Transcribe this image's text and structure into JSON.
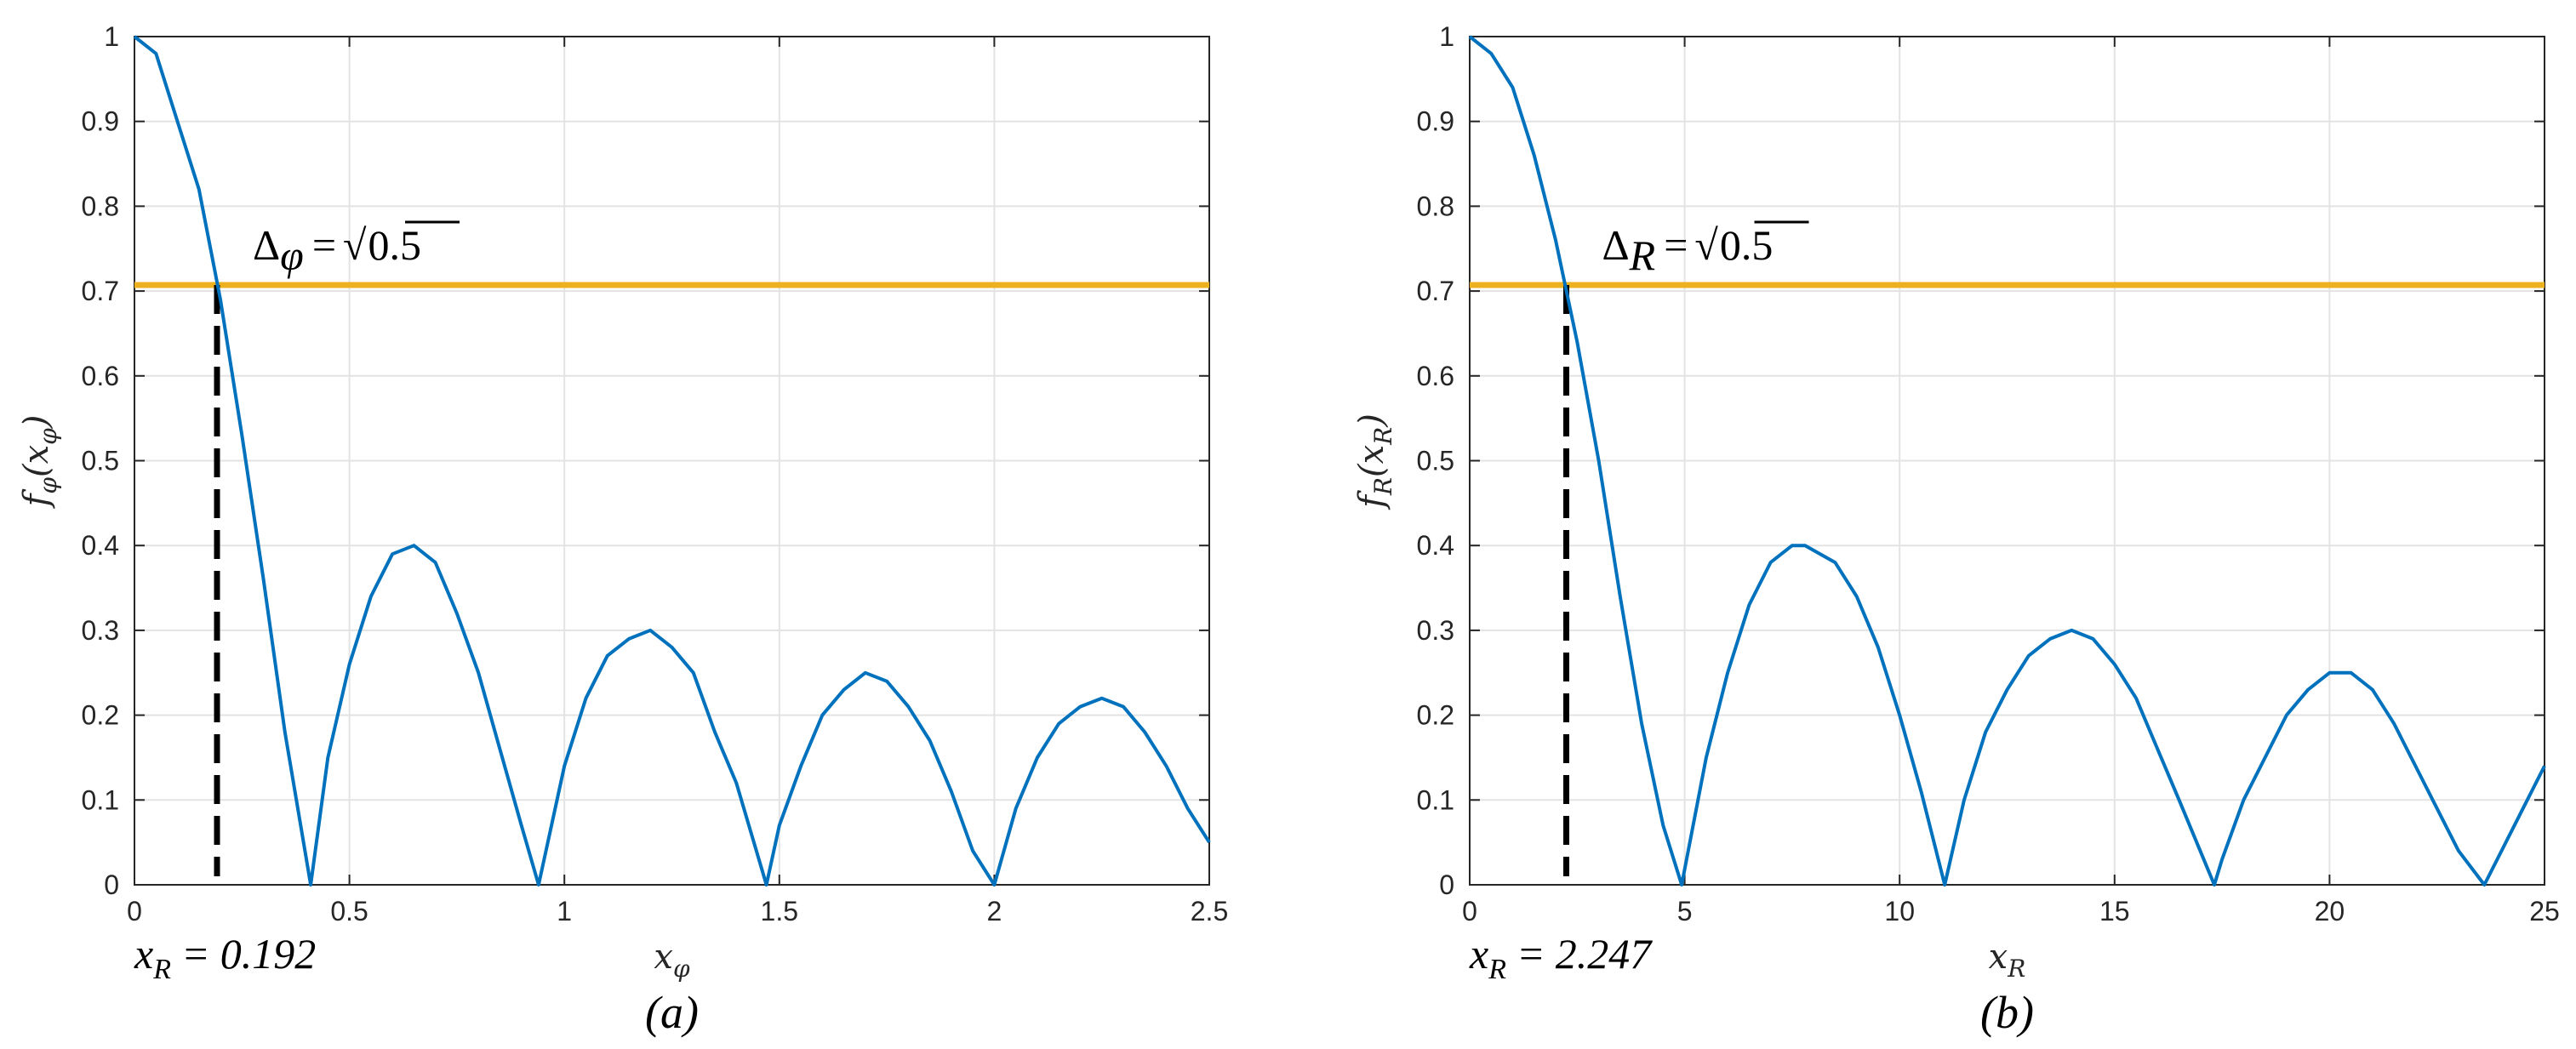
{
  "chart_data": [
    {
      "type": "line",
      "function": "phi",
      "xlim": [
        0,
        2.5
      ],
      "ylim": [
        0,
        1
      ],
      "x_ticks": [
        "0",
        "0.5",
        "1",
        "1.5",
        "2",
        "2.5"
      ],
      "y_ticks": [
        "0",
        "0.1",
        "0.2",
        "0.3",
        "0.4",
        "0.5",
        "0.6",
        "0.7",
        "0.8",
        "0.9",
        "1"
      ],
      "xlabel": {
        "base": "x",
        "sub": "φ"
      },
      "ylabel": {
        "f": "f",
        "fsub": "φ",
        "arg": "x",
        "argsub": "φ"
      },
      "grid": true,
      "curve": {
        "x": [
          0,
          0.05,
          0.1,
          0.15,
          0.2,
          0.25,
          0.3,
          0.35,
          0.41,
          0.45,
          0.5,
          0.55,
          0.6,
          0.65,
          0.7,
          0.75,
          0.8,
          0.85,
          0.9,
          0.94,
          1.0,
          1.05,
          1.1,
          1.15,
          1.2,
          1.25,
          1.3,
          1.35,
          1.4,
          1.47,
          1.5,
          1.55,
          1.6,
          1.65,
          1.7,
          1.75,
          1.8,
          1.85,
          1.9,
          1.95,
          2.0,
          2.05,
          2.1,
          2.15,
          2.2,
          2.25,
          2.3,
          2.35,
          2.4,
          2.45,
          2.5
        ],
        "y": [
          1.0,
          0.98,
          0.9,
          0.82,
          0.69,
          0.53,
          0.36,
          0.18,
          0.0,
          0.15,
          0.26,
          0.34,
          0.39,
          0.4,
          0.38,
          0.32,
          0.25,
          0.16,
          0.07,
          0.0,
          0.14,
          0.22,
          0.27,
          0.29,
          0.3,
          0.28,
          0.25,
          0.18,
          0.12,
          0.0,
          0.07,
          0.14,
          0.2,
          0.23,
          0.25,
          0.24,
          0.21,
          0.17,
          0.11,
          0.04,
          0.0,
          0.09,
          0.15,
          0.19,
          0.21,
          0.22,
          0.21,
          0.18,
          0.14,
          0.09,
          0.05
        ]
      },
      "threshold_y": 0.7071,
      "crossing_x": 0.192,
      "annotation": {
        "delta": "Δ",
        "sub": "φ",
        "eq": "=",
        "sqrt": "√",
        "radicand": "0.5"
      },
      "result": {
        "x": "x",
        "sub": "R",
        "eq": "=",
        "value": "0.192"
      },
      "caption": "(a)",
      "colors": {
        "curve": "#0072BD",
        "threshold": "#EDB120",
        "marker": "#000000",
        "grid": "#E3E3E3"
      }
    },
    {
      "type": "line",
      "function": "R",
      "xlim": [
        0,
        25
      ],
      "ylim": [
        0,
        1
      ],
      "x_ticks": [
        "0",
        "5",
        "10",
        "15",
        "20",
        "25"
      ],
      "y_ticks": [
        "0",
        "0.1",
        "0.2",
        "0.3",
        "0.4",
        "0.5",
        "0.6",
        "0.7",
        "0.8",
        "0.9",
        "1"
      ],
      "xlabel": {
        "base": "x",
        "sub": "R"
      },
      "ylabel": {
        "f": "f",
        "fsub": "R",
        "arg": "x",
        "argsub": "R"
      },
      "grid": true,
      "curve": {
        "x": [
          0,
          0.5,
          1,
          1.5,
          2,
          2.5,
          3,
          3.5,
          4,
          4.5,
          4.93,
          5.5,
          6,
          6.5,
          7,
          7.5,
          7.8,
          8.5,
          9,
          9.5,
          10,
          10.5,
          11.05,
          11.5,
          12,
          12.5,
          13,
          13.5,
          14,
          14.5,
          15,
          15.5,
          16,
          16.5,
          17.32,
          17.5,
          18,
          18.5,
          19,
          19.5,
          20,
          20.5,
          21,
          21.5,
          22,
          22.5,
          23,
          23.6,
          24,
          24.5,
          25
        ],
        "y": [
          1.0,
          0.98,
          0.94,
          0.86,
          0.76,
          0.64,
          0.5,
          0.34,
          0.19,
          0.07,
          0.0,
          0.15,
          0.25,
          0.33,
          0.38,
          0.4,
          0.4,
          0.38,
          0.34,
          0.28,
          0.2,
          0.11,
          0.0,
          0.1,
          0.18,
          0.23,
          0.27,
          0.29,
          0.3,
          0.29,
          0.26,
          0.22,
          0.16,
          0.1,
          0.0,
          0.03,
          0.1,
          0.15,
          0.2,
          0.23,
          0.25,
          0.25,
          0.23,
          0.19,
          0.14,
          0.09,
          0.04,
          0.0,
          0.04,
          0.09,
          0.14
        ]
      },
      "threshold_y": 0.7071,
      "crossing_x": 2.247,
      "annotation": {
        "delta": "Δ",
        "sub": "R",
        "eq": "=",
        "sqrt": "√",
        "radicand": "0.5"
      },
      "result": {
        "x": "x",
        "sub": "R",
        "eq": "=",
        "value": "2.247"
      },
      "caption": "(b)",
      "colors": {
        "curve": "#0072BD",
        "threshold": "#EDB120",
        "marker": "#000000",
        "grid": "#E3E3E3"
      }
    }
  ]
}
